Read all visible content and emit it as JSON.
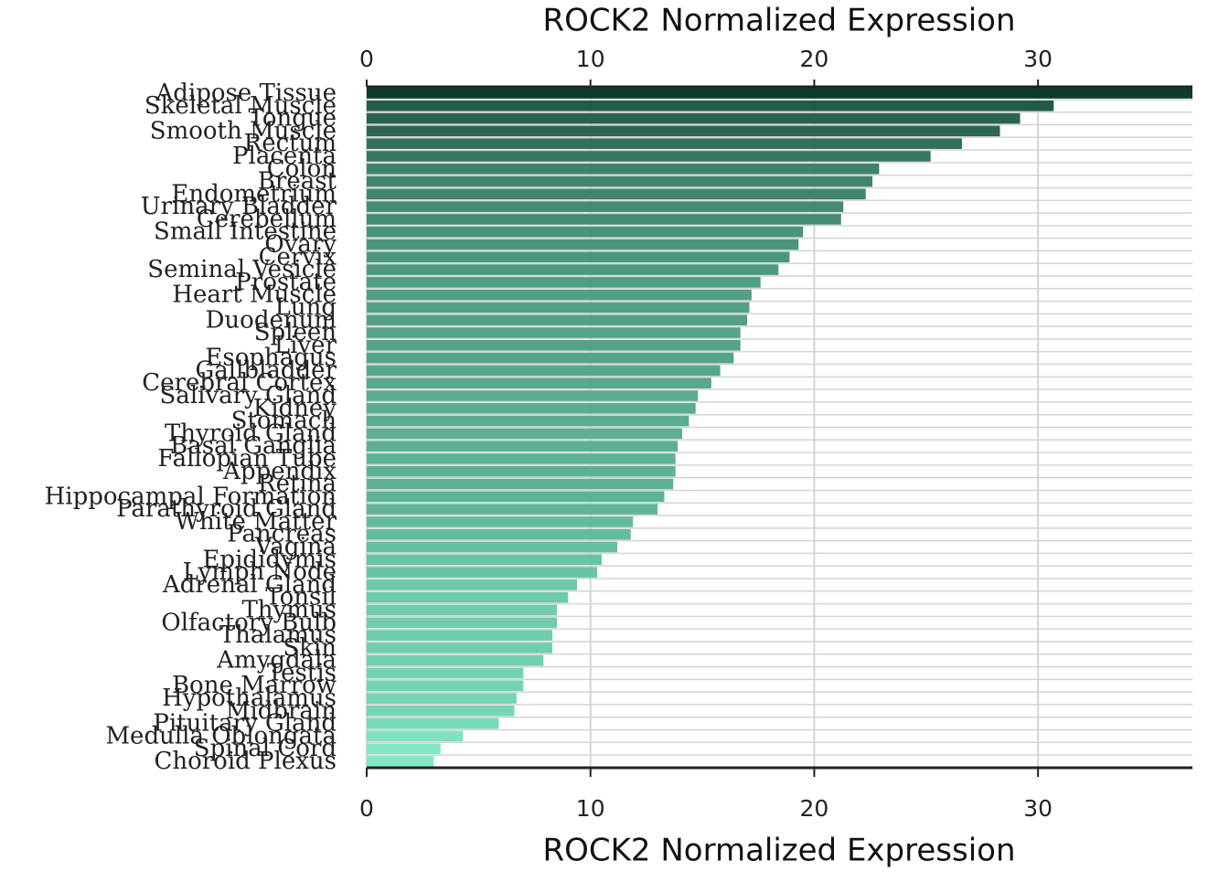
{
  "chart_data": {
    "type": "barh",
    "x_label": "ROCK2 Normalized Expression",
    "categories": [
      "Adipose Tissue",
      "Skeletal Muscle",
      "Tongue",
      "Smooth Muscle",
      "Rectum",
      "Placenta",
      "Colon",
      "Breast",
      "Endometrium",
      "Urinary Bladder",
      "Cerebellum",
      "Small Intestine",
      "Ovary",
      "Cervix",
      "Seminal Vesicle",
      "Prostate",
      "Heart Muscle",
      "Lung",
      "Duodenum",
      "Spleen",
      "Liver",
      "Esophagus",
      "Gallbladder",
      "Cerebral Cortex",
      "Salivary Gland",
      "Kidney",
      "Stomach",
      "Thyroid Gland",
      "Basal Ganglia",
      "Fallopian Tube",
      "Appendix",
      "Retina",
      "Hippocampal Formation",
      "Parathyroid Gland",
      "White Matter",
      "Pancreas",
      "Vagina",
      "Epididymis",
      "Lymph Node",
      "Adrenal Gland",
      "Tonsil",
      "Thymus",
      "Olfactory Bulb",
      "Thalamus",
      "Skin",
      "Amygdala",
      "Testis",
      "Bone Marrow",
      "Hypothalamus",
      "Midbrain",
      "Pituitary Gland",
      "Medulla Oblongata",
      "Spinal Cord",
      "Choroid Plexus"
    ],
    "values": [
      36.9,
      30.7,
      29.2,
      28.3,
      26.6,
      25.2,
      22.9,
      22.6,
      22.3,
      21.3,
      21.2,
      19.5,
      19.3,
      18.9,
      18.4,
      17.6,
      17.2,
      17.1,
      17.0,
      16.7,
      16.7,
      16.4,
      15.8,
      15.4,
      14.8,
      14.7,
      14.4,
      14.1,
      13.9,
      13.8,
      13.8,
      13.7,
      13.3,
      13.0,
      11.9,
      11.8,
      11.2,
      10.5,
      10.3,
      9.4,
      9.0,
      8.5,
      8.5,
      8.3,
      8.3,
      7.9,
      7.0,
      7.0,
      6.7,
      6.6,
      5.9,
      4.3,
      3.3,
      3.0
    ],
    "color_range": [
      "#82e9c3",
      "#0f3b2b"
    ],
    "xlim": [
      0,
      36.9
    ],
    "xticks": [
      0,
      10,
      20,
      30
    ],
    "grid": true
  }
}
